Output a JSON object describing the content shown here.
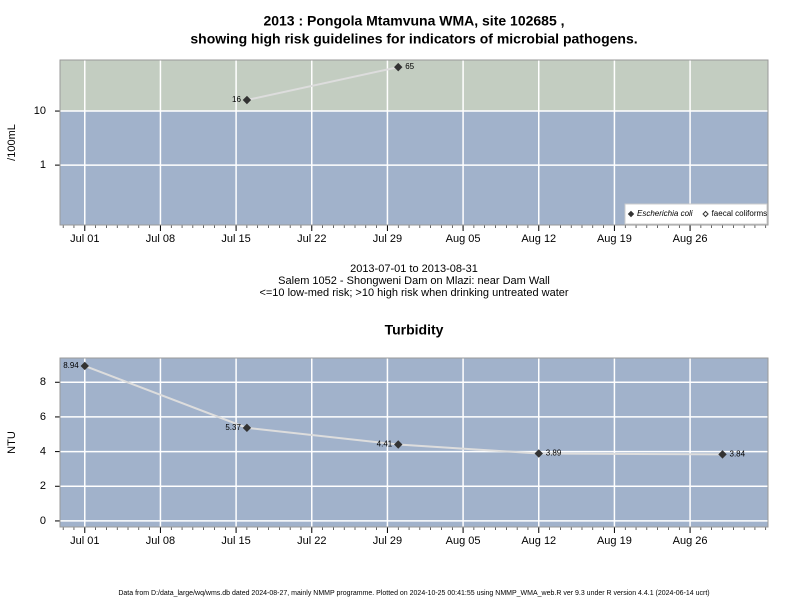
{
  "title": [
    "2013 : Pongola Mtamvuna WMA, site 102685 ,",
    "showing high risk guidelines for indicators of microbial pathogens."
  ],
  "footer": "Data from D:/data_large/wq/wms.db dated 2024-08-27, mainly NMMP programme. Plotted on 2024-10-25 00:41:55 using NMMP_WMA_web.R ver 9.3 under R version 4.4.1 (2024-06-14 ucrt)",
  "chart_data": [
    {
      "type": "line",
      "y_label": "/100mL",
      "log_scale": true,
      "grid": true,
      "threshold": 10,
      "above_color": "#c3cdc1",
      "below_color": "#a1b2cb",
      "x": [
        "2013-07-16",
        "2013-07-30"
      ],
      "series": [
        {
          "name": "Escherichia coli",
          "color": "#333333",
          "line_color": "#dddddd",
          "marker": "filled",
          "values": [
            16,
            65
          ]
        },
        {
          "name": "faecal coliforms",
          "color": "#333333",
          "line_color": "#dddddd",
          "marker": "open",
          "values": [
            null,
            null
          ]
        }
      ],
      "legend": "bottom-right",
      "xlim": [
        "2013-06-28T17:00",
        "2013-09-02T05:00"
      ],
      "xticks": [
        {
          "value": "2013-07-01",
          "label": "Jul 01"
        },
        {
          "value": "2013-07-08",
          "label": "Jul 08"
        },
        {
          "value": "2013-07-15",
          "label": "Jul 15"
        },
        {
          "value": "2013-07-22",
          "label": "Jul 22"
        },
        {
          "value": "2013-07-29",
          "label": "Jul 29"
        },
        {
          "value": "2013-08-05",
          "label": "Aug 05"
        },
        {
          "value": "2013-08-12",
          "label": "Aug 12"
        },
        {
          "value": "2013-08-19",
          "label": "Aug 19"
        },
        {
          "value": "2013-08-26",
          "label": "Aug 26"
        }
      ],
      "ylim": [
        0.078,
        88
      ],
      "yticks": [
        1,
        10
      ],
      "notes": [
        "2013-07-01 to 2013-08-31",
        "Salem 1052 - Shongweni Dam on Mlazi: near Dam Wall",
        "<=10 low-med risk; >10 high risk when drinking untreated water"
      ]
    },
    {
      "type": "line",
      "title": "Turbidity",
      "y_label": "NTU",
      "log_scale": false,
      "grid": true,
      "background_color": "#a1b2cb",
      "x": [
        "2013-07-01",
        "2013-07-16",
        "2013-07-30",
        "2013-08-12",
        "2013-08-29"
      ],
      "series": [
        {
          "name": "Turbidity",
          "color": "#333333",
          "line_color": "#dddddd",
          "marker": "filled",
          "values": [
            8.94,
            5.37,
            4.41,
            3.89,
            3.84
          ]
        }
      ],
      "xlim": [
        "2013-06-28T17:00",
        "2013-09-02T05:00"
      ],
      "xticks": [
        {
          "value": "2013-07-01",
          "label": "Jul 01"
        },
        {
          "value": "2013-07-08",
          "label": "Jul 08"
        },
        {
          "value": "2013-07-15",
          "label": "Jul 15"
        },
        {
          "value": "2013-07-22",
          "label": "Jul 22"
        },
        {
          "value": "2013-07-29",
          "label": "Jul 29"
        },
        {
          "value": "2013-08-05",
          "label": "Aug 05"
        },
        {
          "value": "2013-08-12",
          "label": "Aug 12"
        },
        {
          "value": "2013-08-19",
          "label": "Aug 19"
        },
        {
          "value": "2013-08-26",
          "label": "Aug 26"
        }
      ],
      "ylim": [
        -0.35,
        9.4
      ],
      "yticks": [
        0,
        2,
        4,
        6,
        8
      ]
    }
  ]
}
